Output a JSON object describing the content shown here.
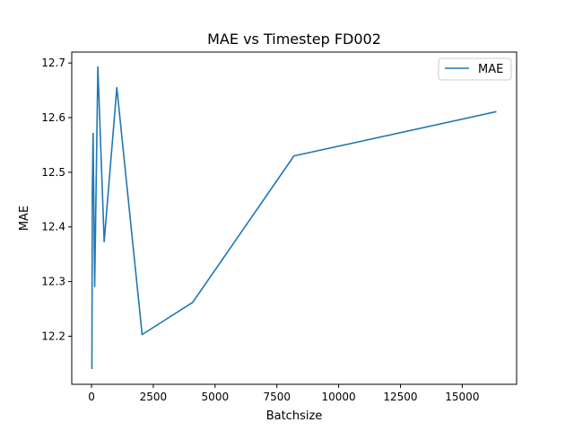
{
  "chart_data": {
    "type": "line",
    "title": "MAE vs Timestep FD002",
    "xlabel": "Batchsize",
    "ylabel": "MAE",
    "xlim": [
      -800,
      17200
    ],
    "ylim": [
      12.112,
      12.72
    ],
    "x_ticks": [
      0,
      2500,
      5000,
      7500,
      10000,
      12500,
      15000
    ],
    "x_tick_labels": [
      "0",
      "2500",
      "5000",
      "7500",
      "10000",
      "12500",
      "15000"
    ],
    "y_ticks": [
      12.2,
      12.3,
      12.4,
      12.5,
      12.6,
      12.7
    ],
    "y_tick_labels": [
      "12.2",
      "12.3",
      "12.4",
      "12.5",
      "12.6",
      "12.7"
    ],
    "grid": false,
    "legend_position": "top-right",
    "series": [
      {
        "name": "MAE",
        "color": "#1f77b4",
        "x": [
          16,
          32,
          64,
          128,
          256,
          512,
          1024,
          2048,
          4096,
          8192,
          16384
        ],
        "y": [
          12.14,
          12.465,
          12.571,
          12.291,
          12.693,
          12.373,
          12.655,
          12.203,
          12.262,
          12.53,
          12.611
        ]
      }
    ]
  }
}
